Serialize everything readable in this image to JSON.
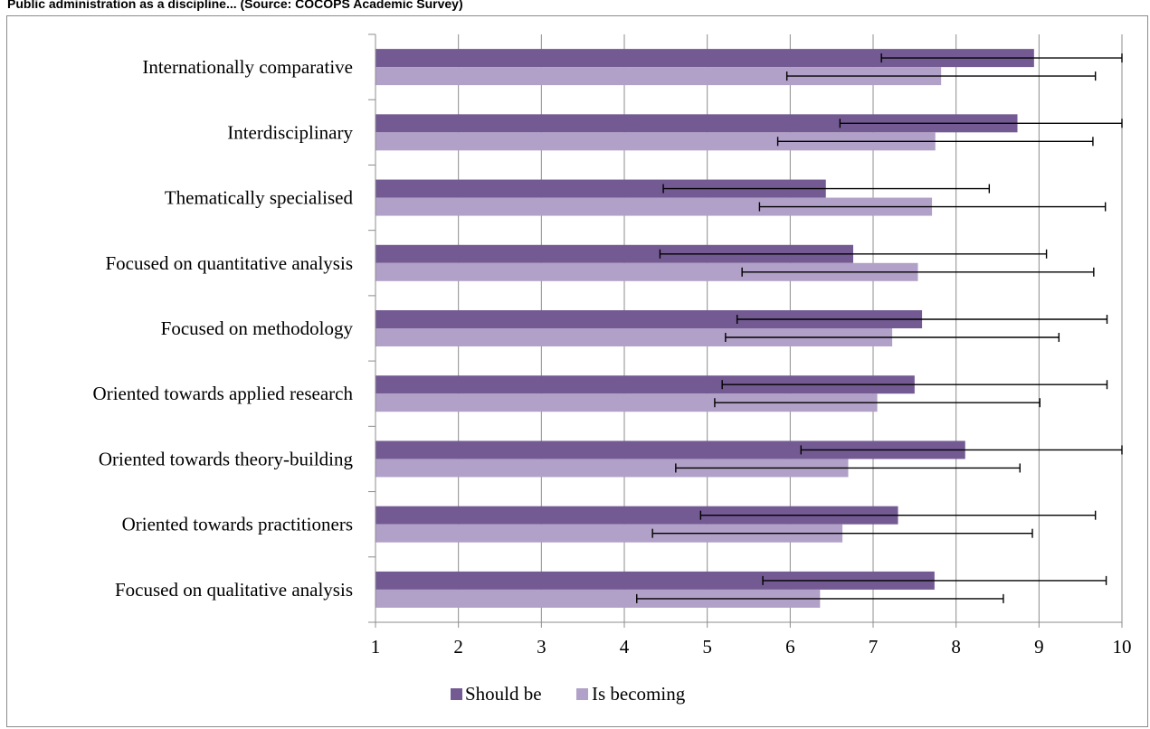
{
  "page": {
    "title": "Public administration as a discipline... (Source: COCOPS Academic Survey)"
  },
  "chart_data": {
    "type": "bar",
    "orientation": "horizontal",
    "categories": [
      "Internationally comparative",
      "Interdisciplinary",
      "Thematically specialised",
      "Focused on quantitative analysis",
      "Focused on methodology",
      "Oriented towards applied research",
      "Oriented towards theory-building",
      "Oriented towards practitioners",
      "Focused on qualitative analysis"
    ],
    "series": [
      {
        "name": "Should be",
        "color": "#735a92",
        "values": [
          8.94,
          8.74,
          6.43,
          6.76,
          7.59,
          7.5,
          8.11,
          7.3,
          7.74
        ],
        "error_low": [
          7.1,
          6.6,
          4.47,
          4.43,
          5.36,
          5.18,
          6.13,
          4.92,
          5.67
        ],
        "error_high": [
          10.0,
          10.0,
          8.4,
          9.09,
          9.82,
          9.82,
          10.0,
          9.68,
          9.81
        ]
      },
      {
        "name": "Is becoming",
        "color": "#b1a0c7",
        "values": [
          7.82,
          7.75,
          7.71,
          7.54,
          7.23,
          7.05,
          6.7,
          6.63,
          6.36
        ],
        "error_low": [
          5.96,
          5.85,
          5.63,
          5.42,
          5.22,
          5.09,
          4.62,
          4.34,
          4.15
        ],
        "error_high": [
          9.68,
          9.65,
          9.8,
          9.66,
          9.24,
          9.01,
          8.77,
          8.92,
          8.57
        ]
      }
    ],
    "xlim": [
      1,
      10
    ],
    "xticks": [
      "1",
      "2",
      "3",
      "4",
      "5",
      "6",
      "7",
      "8",
      "9",
      "10"
    ],
    "grid": true,
    "legend_position": "bottom-center"
  }
}
